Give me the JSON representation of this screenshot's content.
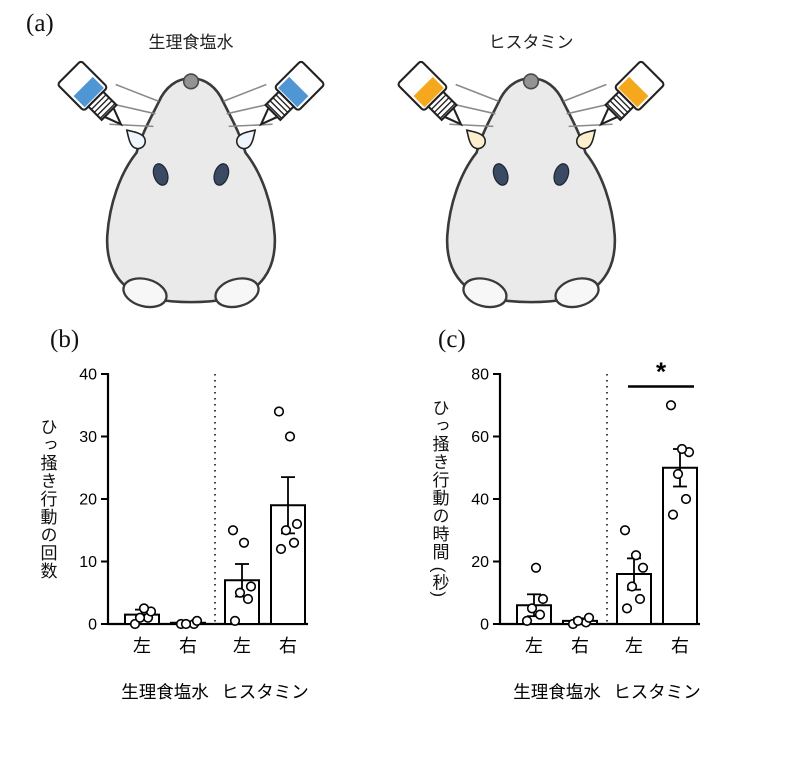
{
  "figure": {
    "panel_a_label": "(a)",
    "panel_b_label": "(b)",
    "panel_c_label": "(c)"
  },
  "panel_a": {
    "mice": [
      {
        "label": "生理食塩水",
        "bottle_color": "#4f97d4",
        "drop_color": "#eef5fc"
      },
      {
        "label": "ヒスタミン",
        "bottle_color": "#f6a81c",
        "drop_color": "#fdeecd"
      }
    ]
  },
  "chart_data": [
    {
      "type": "bar",
      "panel": "b",
      "title": "",
      "xlabel": "",
      "ylabel": "ひっ掻き行動の回数",
      "ylim": [
        0,
        40
      ],
      "yticks": [
        0,
        10,
        20,
        30,
        40
      ],
      "categories": [
        "左",
        "右",
        "左",
        "右"
      ],
      "group_labels": [
        "生理食塩水",
        "ヒスタミン"
      ],
      "values": [
        1.5,
        0.2,
        7,
        19
      ],
      "errors": [
        0.8,
        0.2,
        2.6,
        4.5
      ],
      "points": [
        [
          0,
          1,
          1,
          2,
          2.5
        ],
        [
          0,
          0,
          0,
          0.5
        ],
        [
          0.5,
          4,
          5,
          6,
          13,
          15
        ],
        [
          12,
          13,
          15,
          16,
          30,
          34
        ]
      ],
      "grid": false,
      "significance": null
    },
    {
      "type": "bar",
      "panel": "c",
      "title": "",
      "xlabel": "",
      "ylabel": "ひっ掻き行動の時間 (秒)",
      "ylim": [
        0,
        80
      ],
      "yticks": [
        0,
        20,
        40,
        60,
        80
      ],
      "categories": [
        "左",
        "右",
        "左",
        "右"
      ],
      "group_labels": [
        "生理食塩水",
        "ヒスタミン"
      ],
      "values": [
        6,
        1,
        16,
        50
      ],
      "errors": [
        3.5,
        0.8,
        5,
        6
      ],
      "points": [
        [
          1,
          3,
          5,
          8,
          18
        ],
        [
          0,
          0.5,
          1,
          2
        ],
        [
          5,
          8,
          12,
          18,
          22,
          30
        ],
        [
          35,
          40,
          48,
          55,
          56,
          70
        ]
      ],
      "grid": false,
      "significance": {
        "bars": [
          2,
          3
        ],
        "label": "*"
      }
    }
  ]
}
